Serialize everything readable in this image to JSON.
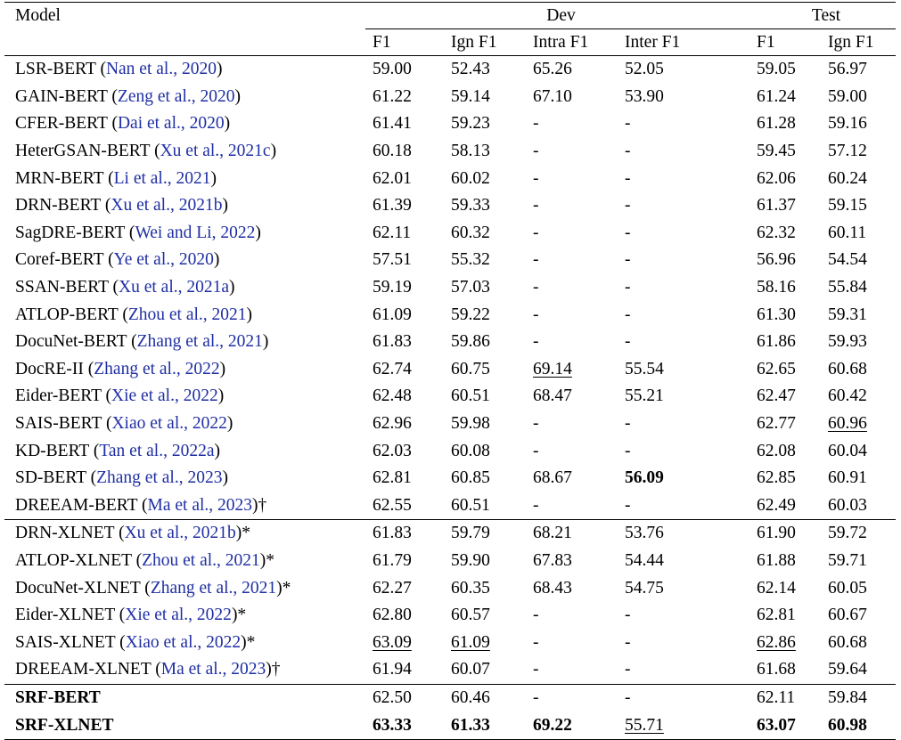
{
  "header": {
    "model": "Model",
    "groups": [
      {
        "label": "Dev",
        "span": 4
      },
      {
        "label": "Test",
        "span": 2
      }
    ],
    "columns": [
      "F1",
      "Ign F1",
      "Intra F1",
      "Inter F1",
      "F1",
      "Ign F1"
    ]
  },
  "groups": [
    [
      {
        "name": "LSR-BERT (",
        "cite": "Nan et al., 2020",
        "close": ")",
        "cells": [
          "59.00",
          "52.43",
          "65.26",
          "52.05",
          "59.05",
          "56.97"
        ]
      },
      {
        "name": "GAIN-BERT (",
        "cite": "Zeng et al., 2020",
        "close": ")",
        "cells": [
          "61.22",
          "59.14",
          "67.10",
          "53.90",
          "61.24",
          "59.00"
        ]
      },
      {
        "name": "CFER-BERT (",
        "cite": "Dai et al., 2020",
        "close": ")",
        "cells": [
          "61.41",
          "59.23",
          "-",
          "-",
          "61.28",
          "59.16"
        ]
      },
      {
        "name": "HeterGSAN-BERT (",
        "cite": "Xu et al., 2021c",
        "close": ")",
        "cells": [
          "60.18",
          "58.13",
          "-",
          "-",
          "59.45",
          "57.12"
        ]
      },
      {
        "name": "MRN-BERT (",
        "cite": "Li et al., 2021",
        "close": ")",
        "cells": [
          "62.01",
          "60.02",
          "-",
          "-",
          "62.06",
          "60.24"
        ]
      },
      {
        "name": "DRN-BERT (",
        "cite": "Xu et al., 2021b",
        "close": ")",
        "cells": [
          "61.39",
          "59.33",
          "-",
          "-",
          "61.37",
          "59.15"
        ]
      },
      {
        "name": "SagDRE-BERT (",
        "cite": "Wei and Li, 2022",
        "close": ")",
        "cells": [
          "62.11",
          "60.32",
          "-",
          "-",
          "62.32",
          "60.11"
        ]
      },
      {
        "name": "Coref-BERT (",
        "cite": "Ye et al., 2020",
        "close": ")",
        "cells": [
          "57.51",
          "55.32",
          "-",
          "-",
          "56.96",
          "54.54"
        ]
      },
      {
        "name": "SSAN-BERT (",
        "cite": "Xu et al., 2021a",
        "close": ")",
        "cells": [
          "59.19",
          "57.03",
          "-",
          "-",
          "58.16",
          "55.84"
        ]
      },
      {
        "name": "ATLOP-BERT (",
        "cite": "Zhou et al., 2021",
        "close": ")",
        "cells": [
          "61.09",
          "59.22",
          "-",
          "-",
          "61.30",
          "59.31"
        ]
      },
      {
        "name": "DocuNet-BERT (",
        "cite": "Zhang et al., 2021",
        "close": ")",
        "cells": [
          "61.83",
          "59.86",
          "-",
          "-",
          "61.86",
          "59.93"
        ]
      },
      {
        "name": "DocRE-II (",
        "cite": "Zhang et al., 2022",
        "close": ")",
        "cells": [
          "62.74",
          "60.75",
          "69.14",
          "55.54",
          "62.65",
          "60.68"
        ],
        "underline": [
          2
        ]
      },
      {
        "name": "Eider-BERT (",
        "cite": "Xie et al., 2022",
        "close": ")",
        "cells": [
          "62.48",
          "60.51",
          "68.47",
          "55.21",
          "62.47",
          "60.42"
        ]
      },
      {
        "name": "SAIS-BERT (",
        "cite": "Xiao et al., 2022",
        "close": ")",
        "cells": [
          "62.96",
          "59.98",
          "-",
          "-",
          "62.77",
          "60.96"
        ],
        "underline": [
          5
        ]
      },
      {
        "name": "KD-BERT (",
        "cite": "Tan et al., 2022a",
        "close": ")",
        "cells": [
          "62.03",
          "60.08",
          "-",
          "-",
          "62.08",
          "60.04"
        ]
      },
      {
        "name": "SD-BERT (",
        "cite": "Zhang et al., 2023",
        "close": ")",
        "cells": [
          "62.81",
          "60.85",
          "68.67",
          "56.09",
          "62.85",
          "60.91"
        ],
        "bold": [
          3
        ]
      },
      {
        "name": "DREEAM-BERT (",
        "cite": "Ma et al., 2023",
        "close": ")†",
        "cells": [
          "62.55",
          "60.51",
          "-",
          "-",
          "62.49",
          "60.03"
        ]
      }
    ],
    [
      {
        "name": "DRN-XLNET (",
        "cite": "Xu et al., 2021b",
        "close": ")*",
        "cells": [
          "61.83",
          "59.79",
          "68.21",
          "53.76",
          "61.90",
          "59.72"
        ]
      },
      {
        "name": "ATLOP-XLNET (",
        "cite": "Zhou et al., 2021",
        "close": ")*",
        "cells": [
          "61.79",
          "59.90",
          "67.83",
          "54.44",
          "61.88",
          "59.71"
        ]
      },
      {
        "name": "DocuNet-XLNET (",
        "cite": "Zhang et al., 2021",
        "close": ")*",
        "cells": [
          "62.27",
          "60.35",
          "68.43",
          "54.75",
          "62.14",
          "60.05"
        ]
      },
      {
        "name": "Eider-XLNET (",
        "cite": "Xie et al., 2022",
        "close": ")*",
        "cells": [
          "62.80",
          "60.57",
          "-",
          "-",
          "62.81",
          "60.67"
        ]
      },
      {
        "name": "SAIS-XLNET (",
        "cite": "Xiao et al., 2022",
        "close": ")*",
        "cells": [
          "63.09",
          "61.09",
          "-",
          "-",
          "62.86",
          "60.68"
        ],
        "underline": [
          0,
          1,
          4
        ]
      },
      {
        "name": "DREEAM-XLNET (",
        "cite": "Ma et al., 2023",
        "close": ")†",
        "cells": [
          "61.94",
          "60.07",
          "-",
          "-",
          "61.68",
          "59.64"
        ]
      }
    ],
    [
      {
        "name": "SRF-BERT",
        "name_bold": true,
        "cells": [
          "62.50",
          "60.46",
          "-",
          "-",
          "62.11",
          "59.84"
        ]
      },
      {
        "name": "SRF-XLNET",
        "name_bold": true,
        "cells": [
          "63.33",
          "61.33",
          "69.22",
          "55.71",
          "63.07",
          "60.98"
        ],
        "bold": [
          0,
          1,
          2,
          4,
          5
        ],
        "underline": [
          3
        ]
      }
    ]
  ]
}
